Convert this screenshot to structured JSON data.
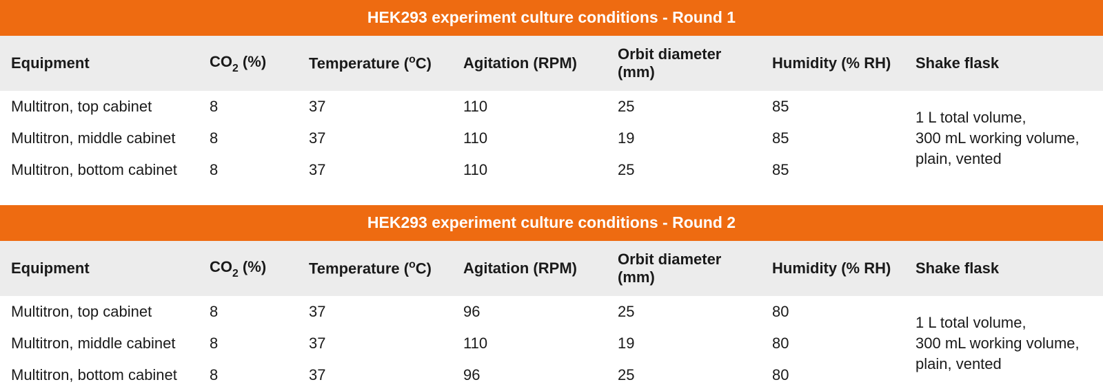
{
  "colors": {
    "title_bg": "#ee6b11",
    "title_fg": "#ffffff",
    "header_bg": "#ececec",
    "row_bg": "#ffffff",
    "text": "#1a1a1a"
  },
  "columns": [
    {
      "key": "equipment",
      "label_html": "Equipment",
      "width": "18%"
    },
    {
      "key": "co2",
      "label_html": "CO<span class=\"sub\">2</span> (%)",
      "width": "9%"
    },
    {
      "key": "temp",
      "label_html": "Temperature (<span class=\"sup\">o</span>C)",
      "width": "14%"
    },
    {
      "key": "agitation",
      "label_html": "Agitation (RPM)",
      "width": "14%"
    },
    {
      "key": "orbit",
      "label_html": "Orbit diameter (mm)",
      "width": "14%"
    },
    {
      "key": "humidity",
      "label_html": "Humidity (% RH)",
      "width": "13%"
    },
    {
      "key": "flask",
      "label_html": "Shake flask",
      "width": "18%"
    }
  ],
  "tables": [
    {
      "title": "HEK293 experiment culture conditions - Round 1",
      "flask_merged": "1 L total volume,\n300 mL working volume,\nplain, vented",
      "rows": [
        {
          "equipment": "Multitron, top cabinet",
          "co2": "8",
          "temp": "37",
          "agitation": "110",
          "orbit": "25",
          "humidity": "85"
        },
        {
          "equipment": "Multitron, middle cabinet",
          "co2": "8",
          "temp": "37",
          "agitation": "110",
          "orbit": "19",
          "humidity": "85"
        },
        {
          "equipment": "Multitron, bottom cabinet",
          "co2": "8",
          "temp": "37",
          "agitation": "110",
          "orbit": "25",
          "humidity": "85"
        }
      ]
    },
    {
      "title": "HEK293 experiment culture conditions - Round 2",
      "flask_merged": "1 L total volume,\n300 mL working volume,\nplain, vented",
      "rows": [
        {
          "equipment": "Multitron, top cabinet",
          "co2": "8",
          "temp": "37",
          "agitation": "96",
          "orbit": "25",
          "humidity": "80"
        },
        {
          "equipment": "Multitron, middle cabinet",
          "co2": "8",
          "temp": "37",
          "agitation": "110",
          "orbit": "19",
          "humidity": "80"
        },
        {
          "equipment": "Multitron, bottom cabinet",
          "co2": "8",
          "temp": "37",
          "agitation": "96",
          "orbit": "25",
          "humidity": "80"
        }
      ]
    }
  ]
}
